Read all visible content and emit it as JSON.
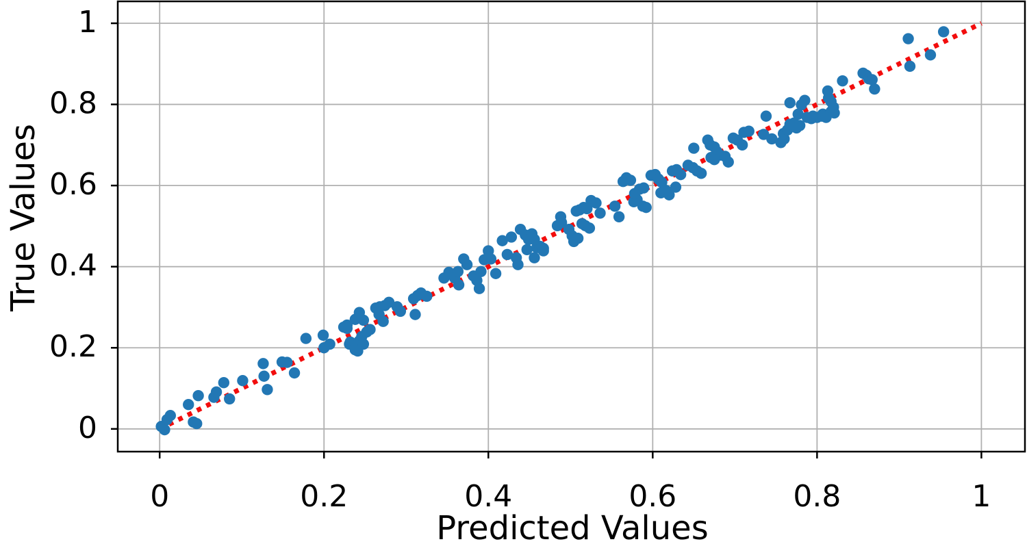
{
  "chart_data": {
    "type": "scatter",
    "title": "",
    "xlabel": "Predicted Values",
    "ylabel": "True Values",
    "xlim": [
      -0.051,
      1.053
    ],
    "ylim": [
      -0.056,
      1.054
    ],
    "xticks": [
      0,
      0.2,
      0.4,
      0.6,
      0.8,
      1
    ],
    "yticks": [
      0,
      0.2,
      0.4,
      0.6,
      0.8,
      1
    ],
    "grid": true,
    "legend": "none",
    "colors": {
      "points": "#2277b4",
      "reference_line": "#f20d0d",
      "grid": "#b0b0b0",
      "spine": "#000000",
      "background": "#ffffff"
    },
    "reference_line": {
      "name": "identity-line",
      "style": "dotted",
      "from": [
        0,
        0
      ],
      "to": [
        1,
        1
      ]
    },
    "series": [
      {
        "name": "predicted-vs-true-points",
        "marker": "circle",
        "marker_radius_px": 8.2,
        "points": [
          [
            0.002,
            0.006
          ],
          [
            0.006,
            -0.002
          ],
          [
            0.009,
            0.023
          ],
          [
            0.013,
            0.033
          ],
          [
            0.035,
            0.06
          ],
          [
            0.041,
            0.017
          ],
          [
            0.045,
            0.013
          ],
          [
            0.047,
            0.082
          ],
          [
            0.066,
            0.078
          ],
          [
            0.069,
            0.091
          ],
          [
            0.078,
            0.114
          ],
          [
            0.085,
            0.074
          ],
          [
            0.101,
            0.119
          ],
          [
            0.126,
            0.161
          ],
          [
            0.127,
            0.13
          ],
          [
            0.131,
            0.097
          ],
          [
            0.149,
            0.165
          ],
          [
            0.155,
            0.164
          ],
          [
            0.164,
            0.138
          ],
          [
            0.178,
            0.223
          ],
          [
            0.199,
            0.231
          ],
          [
            0.2,
            0.2
          ],
          [
            0.207,
            0.209
          ],
          [
            0.224,
            0.251
          ],
          [
            0.228,
            0.256
          ],
          [
            0.231,
            0.209
          ],
          [
            0.238,
            0.195
          ],
          [
            0.243,
            0.217
          ],
          [
            0.246,
            0.228
          ],
          [
            0.228,
            0.248
          ],
          [
            0.238,
            0.27
          ],
          [
            0.243,
            0.287
          ],
          [
            0.248,
            0.268
          ],
          [
            0.252,
            0.239
          ],
          [
            0.256,
            0.245
          ],
          [
            0.232,
            0.214
          ],
          [
            0.239,
            0.206
          ],
          [
            0.248,
            0.209
          ],
          [
            0.241,
            0.192
          ],
          [
            0.263,
            0.298
          ],
          [
            0.268,
            0.301
          ],
          [
            0.274,
            0.304
          ],
          [
            0.279,
            0.312
          ],
          [
            0.267,
            0.282
          ],
          [
            0.272,
            0.265
          ],
          [
            0.289,
            0.301
          ],
          [
            0.293,
            0.29
          ],
          [
            0.311,
            0.282
          ],
          [
            0.309,
            0.321
          ],
          [
            0.314,
            0.329
          ],
          [
            0.318,
            0.335
          ],
          [
            0.325,
            0.327
          ],
          [
            0.346,
            0.372
          ],
          [
            0.352,
            0.386
          ],
          [
            0.359,
            0.372
          ],
          [
            0.363,
            0.388
          ],
          [
            0.364,
            0.355
          ],
          [
            0.37,
            0.419
          ],
          [
            0.374,
            0.405
          ],
          [
            0.382,
            0.377
          ],
          [
            0.386,
            0.366
          ],
          [
            0.389,
            0.346
          ],
          [
            0.391,
            0.388
          ],
          [
            0.395,
            0.417
          ],
          [
            0.4,
            0.439
          ],
          [
            0.403,
            0.419
          ],
          [
            0.409,
            0.383
          ],
          [
            0.417,
            0.464
          ],
          [
            0.423,
            0.43
          ],
          [
            0.428,
            0.473
          ],
          [
            0.434,
            0.422
          ],
          [
            0.436,
            0.405
          ],
          [
            0.439,
            0.492
          ],
          [
            0.445,
            0.478
          ],
          [
            0.449,
            0.467
          ],
          [
            0.447,
            0.442
          ],
          [
            0.453,
            0.481
          ],
          [
            0.459,
            0.447
          ],
          [
            0.463,
            0.45
          ],
          [
            0.467,
            0.445
          ],
          [
            0.456,
            0.467
          ],
          [
            0.456,
            0.422
          ],
          [
            0.467,
            0.439
          ],
          [
            0.484,
            0.501
          ],
          [
            0.488,
            0.523
          ],
          [
            0.489,
            0.509
          ],
          [
            0.498,
            0.492
          ],
          [
            0.502,
            0.476
          ],
          [
            0.504,
            0.462
          ],
          [
            0.509,
            0.47
          ],
          [
            0.507,
            0.537
          ],
          [
            0.511,
            0.54
          ],
          [
            0.516,
            0.546
          ],
          [
            0.52,
            0.543
          ],
          [
            0.514,
            0.506
          ],
          [
            0.518,
            0.501
          ],
          [
            0.523,
            0.495
          ],
          [
            0.525,
            0.563
          ],
          [
            0.531,
            0.557
          ],
          [
            0.536,
            0.532
          ],
          [
            0.554,
            0.549
          ],
          [
            0.559,
            0.523
          ],
          [
            0.564,
            0.61
          ],
          [
            0.568,
            0.619
          ],
          [
            0.573,
            0.613
          ],
          [
            0.577,
            0.56
          ],
          [
            0.581,
            0.565
          ],
          [
            0.578,
            0.58
          ],
          [
            0.584,
            0.591
          ],
          [
            0.589,
            0.594
          ],
          [
            0.588,
            0.549
          ],
          [
            0.592,
            0.546
          ],
          [
            0.598,
            0.625
          ],
          [
            0.603,
            0.627
          ],
          [
            0.607,
            0.616
          ],
          [
            0.611,
            0.608
          ],
          [
            0.61,
            0.582
          ],
          [
            0.616,
            0.588
          ],
          [
            0.62,
            0.577
          ],
          [
            0.628,
            0.596
          ],
          [
            0.624,
            0.636
          ],
          [
            0.629,
            0.639
          ],
          [
            0.634,
            0.627
          ],
          [
            0.643,
            0.65
          ],
          [
            0.649,
            0.644
          ],
          [
            0.654,
            0.636
          ],
          [
            0.659,
            0.63
          ],
          [
            0.65,
            0.692
          ],
          [
            0.667,
            0.712
          ],
          [
            0.67,
            0.7
          ],
          [
            0.675,
            0.695
          ],
          [
            0.678,
            0.684
          ],
          [
            0.682,
            0.675
          ],
          [
            0.688,
            0.672
          ],
          [
            0.692,
            0.658
          ],
          [
            0.671,
            0.669
          ],
          [
            0.675,
            0.664
          ],
          [
            0.698,
            0.717
          ],
          [
            0.703,
            0.712
          ],
          [
            0.709,
            0.7
          ],
          [
            0.711,
            0.731
          ],
          [
            0.717,
            0.734
          ],
          [
            0.738,
            0.771
          ],
          [
            0.735,
            0.726
          ],
          [
            0.745,
            0.715
          ],
          [
            0.756,
            0.706
          ],
          [
            0.76,
            0.715
          ],
          [
            0.759,
            0.728
          ],
          [
            0.764,
            0.737
          ],
          [
            0.767,
            0.751
          ],
          [
            0.772,
            0.754
          ],
          [
            0.775,
            0.742
          ],
          [
            0.779,
            0.748
          ],
          [
            0.767,
            0.804
          ],
          [
            0.781,
            0.799
          ],
          [
            0.785,
            0.81
          ],
          [
            0.777,
            0.776
          ],
          [
            0.788,
            0.768
          ],
          [
            0.793,
            0.765
          ],
          [
            0.8,
            0.768
          ],
          [
            0.807,
            0.776
          ],
          [
            0.817,
            0.782
          ],
          [
            0.795,
            0.771
          ],
          [
            0.806,
            0.771
          ],
          [
            0.811,
            0.768
          ],
          [
            0.821,
            0.779
          ],
          [
            0.82,
            0.793
          ],
          [
            0.813,
            0.833
          ],
          [
            0.814,
            0.816
          ],
          [
            0.817,
            0.807
          ],
          [
            0.831,
            0.858
          ],
          [
            0.856,
            0.877
          ],
          [
            0.86,
            0.872
          ],
          [
            0.863,
            0.863
          ],
          [
            0.867,
            0.861
          ],
          [
            0.87,
            0.838
          ],
          [
            0.911,
            0.962
          ],
          [
            0.913,
            0.894
          ],
          [
            0.938,
            0.922
          ],
          [
            0.954,
            0.979
          ]
        ]
      }
    ],
    "tick_label_format": {
      "zero": "0",
      "one": "1",
      "decimals": 1
    }
  }
}
